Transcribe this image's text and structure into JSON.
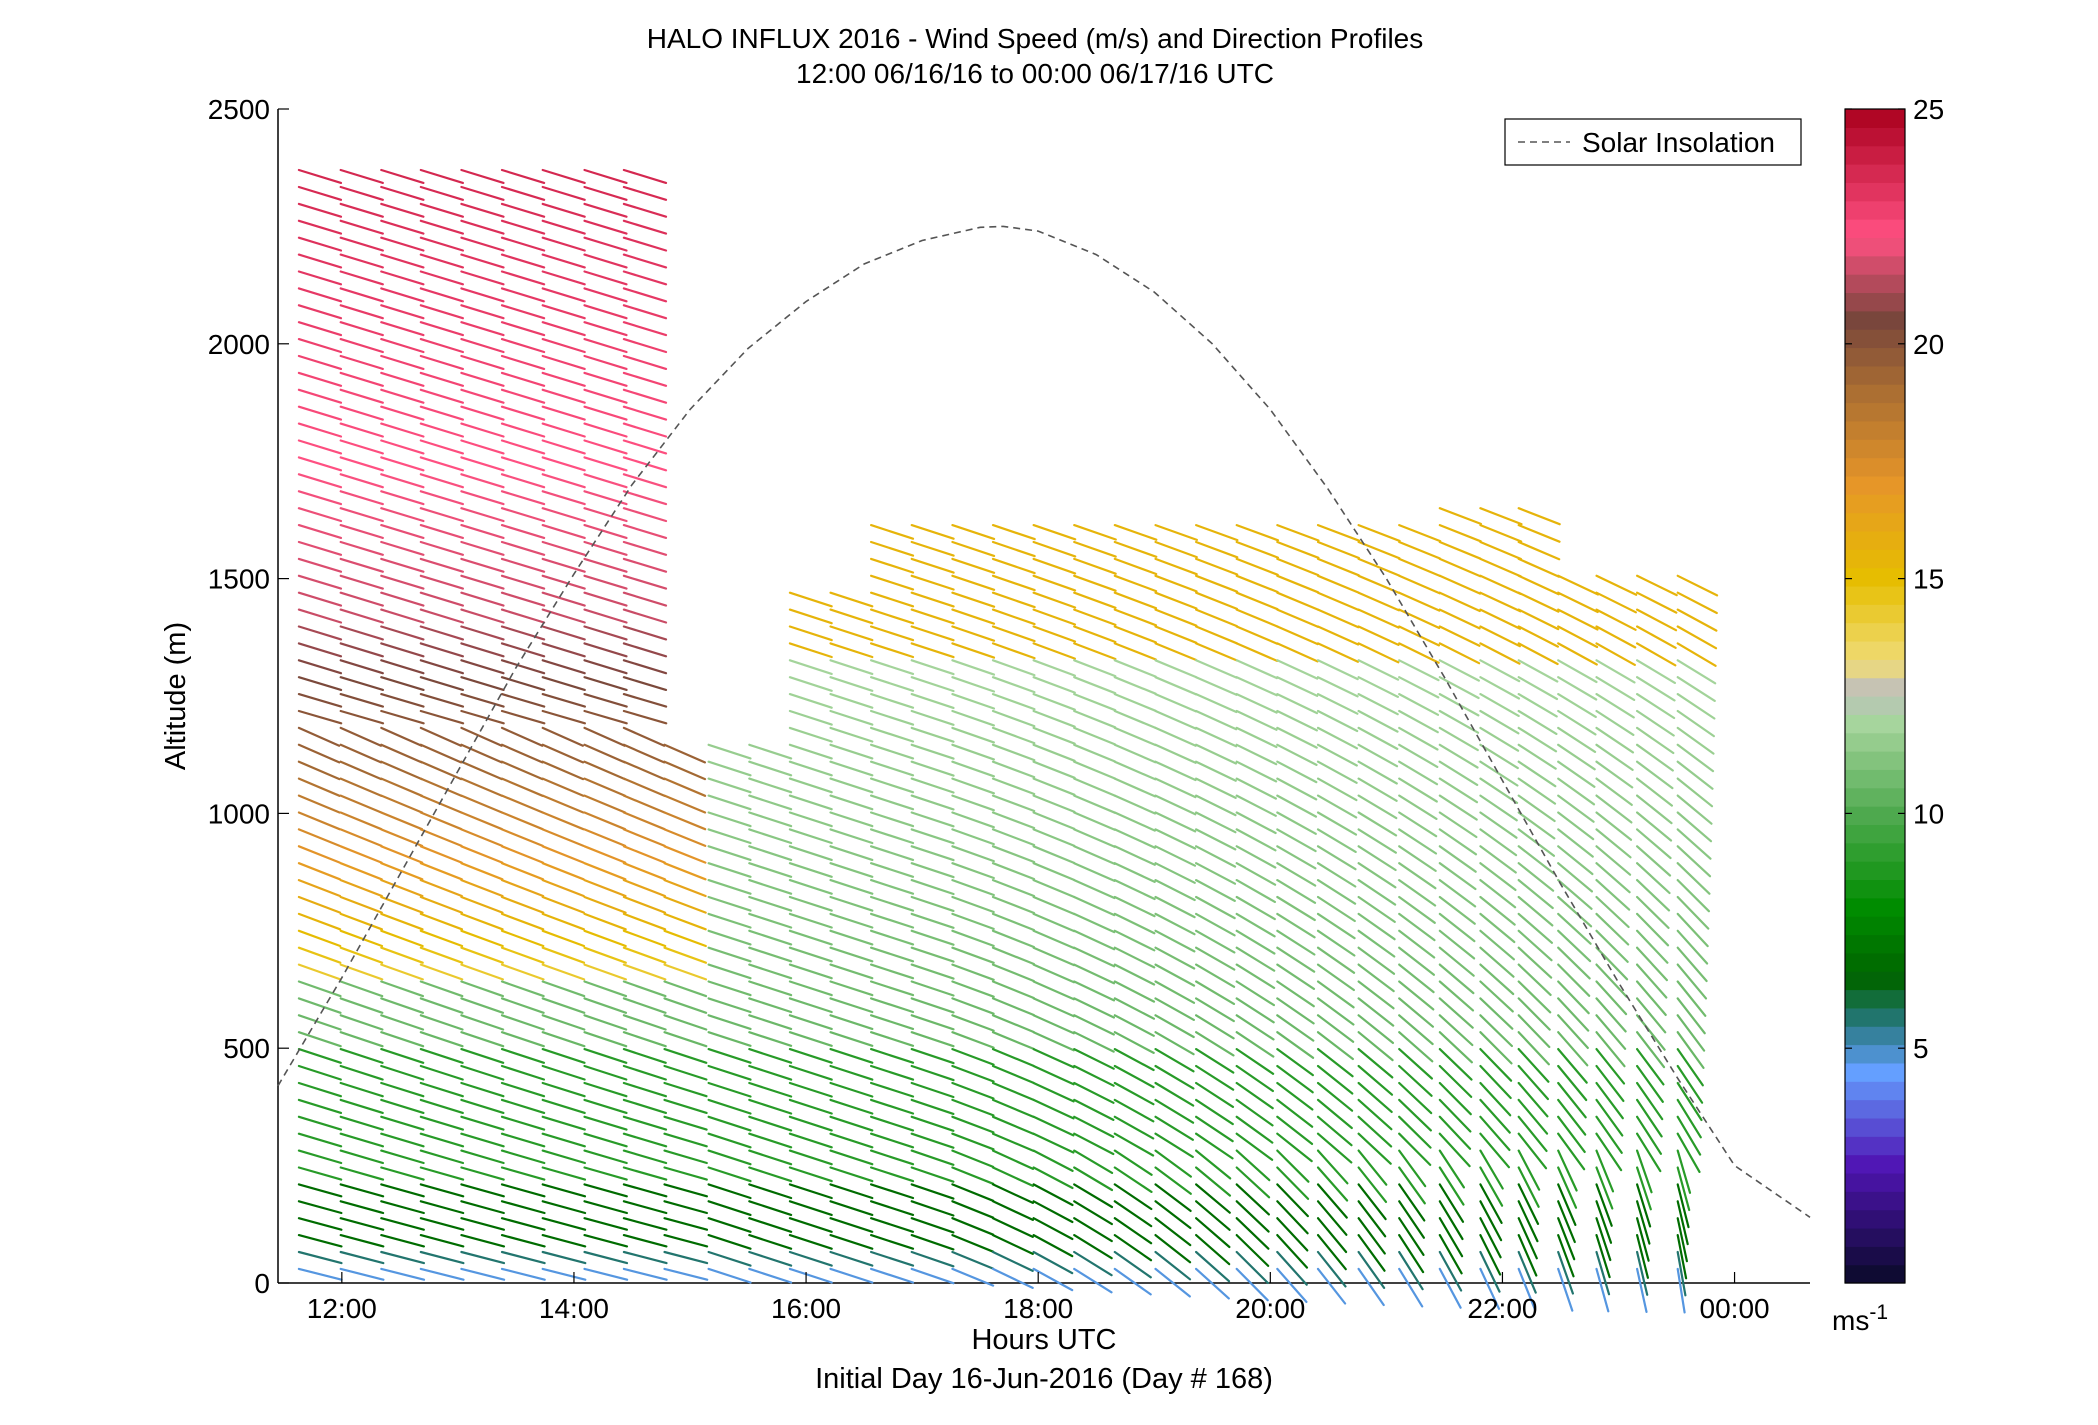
{
  "chart_data": {
    "type": "wind barb profile",
    "title": "HALO INFLUX 2016 - Wind Speed (m/s) and Direction Profiles",
    "subtitle": "12:00 06/16/16 to 00:00 06/17/16  UTC",
    "xlabel": "Hours UTC",
    "xlabel2": "Initial Day 16-Jun-2016 (Day # 168)",
    "ylabel": "Altitude (m)",
    "xlim": [
      11.45,
      24.65
    ],
    "ylim": [
      0,
      2500
    ],
    "x_ticks": [
      12,
      14,
      16,
      18,
      20,
      22,
      24
    ],
    "x_tick_labels": [
      "12:00",
      "14:00",
      "16:00",
      "18:00",
      "20:00",
      "22:00",
      "00:00"
    ],
    "y_ticks": [
      0,
      500,
      1000,
      1500,
      2000,
      2500
    ],
    "y_tick_labels": [
      "0",
      "500",
      "1000",
      "1500",
      "2000",
      "2500"
    ],
    "colorbar": {
      "range": [
        0,
        25
      ],
      "ticks": [
        5,
        10,
        15,
        20,
        25
      ],
      "tick_labels": [
        "5",
        "10",
        "15",
        "20",
        "25"
      ],
      "unit_label": "ms",
      "unit_exponent": "-1"
    },
    "legend": {
      "entries": [
        "Solar Insolation"
      ],
      "position": "top-right",
      "style": "dashed gray"
    },
    "solar_insolation": {
      "x": [
        11.45,
        12.0,
        12.5,
        13.0,
        13.5,
        14.0,
        14.5,
        15.0,
        15.5,
        16.0,
        16.5,
        17.0,
        17.5,
        17.7,
        18.0,
        18.5,
        19.0,
        19.5,
        20.0,
        20.5,
        21.0,
        21.5,
        22.0,
        22.5,
        23.0,
        23.5,
        24.0,
        24.65
      ],
      "y": [
        420,
        650,
        870,
        1090,
        1310,
        1510,
        1700,
        1860,
        1990,
        2090,
        2170,
        2220,
        2248,
        2250,
        2240,
        2190,
        2110,
        2000,
        1860,
        1690,
        1500,
        1290,
        1070,
        850,
        640,
        440,
        250,
        140
      ]
    },
    "profile_times": [
      11.82,
      12.18,
      12.53,
      12.87,
      13.22,
      13.57,
      13.92,
      14.28,
      14.62,
      14.97,
      15.35,
      15.7,
      16.05,
      16.4,
      16.75,
      17.1,
      17.45,
      17.8,
      18.15,
      18.5,
      18.85,
      19.2,
      19.55,
      19.9,
      20.25,
      20.6,
      20.95,
      21.3,
      21.65,
      22.0,
      22.33,
      22.67,
      23.0,
      23.35,
      23.7
    ]
  }
}
